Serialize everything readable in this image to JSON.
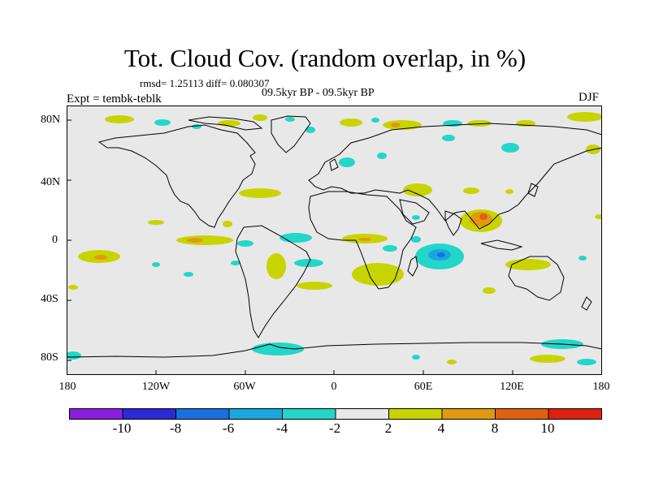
{
  "title": "Tot. Cloud Cov. (random overlap, in %)",
  "stats": "rmsd= 1.25113 diff= 0.080307",
  "period": "09.5kyr BP - 09.5kyr BP",
  "experiment": "Expt = tembk-teblk",
  "season": "DJF",
  "map": {
    "background_color": "#e8e8e8",
    "lat_labels": [
      "80N",
      "40N",
      "0",
      "40S",
      "80S"
    ],
    "lon_labels": [
      "180",
      "120W",
      "60W",
      "0",
      "60E",
      "120E",
      "180"
    ]
  },
  "colorbar": {
    "colors": [
      "#8a1fe0",
      "#2a2ad6",
      "#1a6fe0",
      "#1aa6e0",
      "#22d6c8",
      "#e8e8e8",
      "#c8d400",
      "#e09a10",
      "#e06010",
      "#e02010"
    ],
    "labels": [
      "-10",
      "-8",
      "-6",
      "-4",
      "-2",
      "2",
      "4",
      "8",
      "10"
    ]
  }
}
